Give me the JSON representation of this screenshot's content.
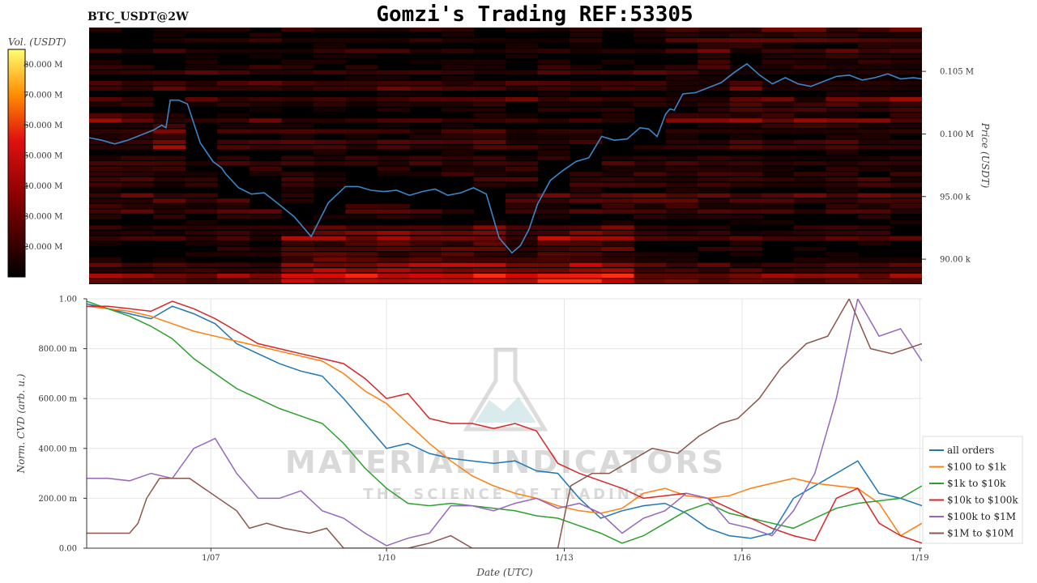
{
  "header": {
    "ticker": "BTC_USDT@2W",
    "title": "Gomzi's Trading REF:53305"
  },
  "watermark": {
    "brand": "MATERIAL INDICATORS",
    "tagline": "THE SCIENCE OF TRADING"
  },
  "colors": {
    "price_line": "#3a86c8",
    "heatmap_dark": "#000000",
    "heatmap_hot": "#ff2a1a",
    "grid": "#e6e6e6"
  },
  "chart_data": [
    {
      "type": "heatmap",
      "title": "BTC_USDT@2W",
      "colorbar_label": "Vol. (USDT)",
      "colorbar_ticks": [
        "80.000 M",
        "70.000 M",
        "60.000 M",
        "50.000 M",
        "40.000 M",
        "30.000 M",
        "20.000 M"
      ],
      "colorbar_values": [
        80000000,
        70000000,
        60000000,
        50000000,
        40000000,
        30000000,
        20000000
      ],
      "ylabel": "Price (USDT)",
      "price_ticks": [
        "0.105 M",
        "0.100 M",
        "95.00 k",
        "90.00 k"
      ],
      "price_values": [
        105000,
        100000,
        95000,
        90000
      ],
      "ylim": [
        88000,
        108500
      ],
      "colorbar_range": [
        10000000,
        85000000
      ],
      "series": [
        {
          "name": "price",
          "x": [
            0,
            0.3,
            0.6,
            0.9,
            1.2,
            1.5,
            1.7,
            1.8,
            1.9,
            2.1,
            2.3,
            2.6,
            2.9,
            3.1,
            3.2,
            3.5,
            3.8,
            4.1,
            4.4,
            4.8,
            5.2,
            5.6,
            6.0,
            6.3,
            6.6,
            6.9,
            7.2,
            7.5,
            7.8,
            8.1,
            8.4,
            8.7,
            9.0,
            9.3,
            9.6,
            9.9,
            10.1,
            10.3,
            10.5,
            10.8,
            11.1,
            11.4,
            11.7,
            12.0,
            12.3,
            12.6,
            12.9,
            13.1,
            13.3,
            13.5,
            13.6,
            13.7,
            13.9,
            14.2,
            14.5,
            14.8,
            15.1,
            15.4,
            15.7,
            16.0,
            16.3,
            16.6,
            16.9,
            17.2,
            17.5,
            17.8,
            18.1,
            18.4,
            18.7,
            19.0,
            19.3,
            19.5
          ],
          "y": [
            99700,
            99500,
            99200,
            99500,
            99900,
            100300,
            100700,
            100500,
            102700,
            102700,
            102400,
            99300,
            97800,
            97300,
            96800,
            95700,
            95200,
            95300,
            94500,
            93400,
            91800,
            94500,
            95800,
            95800,
            95500,
            95400,
            95500,
            95100,
            95400,
            95600,
            95100,
            95300,
            95700,
            95200,
            91700,
            90500,
            91100,
            92400,
            94400,
            96300,
            97100,
            97800,
            98100,
            99800,
            99500,
            99600,
            100500,
            100400,
            99800,
            101600,
            102000,
            101900,
            103200,
            103300,
            103700,
            104100,
            104900,
            105600,
            104700,
            104000,
            104500,
            104000,
            103800,
            104200,
            104600,
            104700,
            104300,
            104500,
            104800,
            104400,
            104500,
            104400
          ]
        }
      ]
    },
    {
      "type": "line",
      "xlabel": "Date (UTC)",
      "ylabel": "Norm. CVD (arb. u.)",
      "x_ticks": [
        "1/07",
        "1/10",
        "1/13",
        "1/16",
        "1/19"
      ],
      "x_tick_values": [
        2.9,
        7.0,
        11.15,
        15.3,
        19.45
      ],
      "y_ticks": [
        "1.00",
        "800.00 m",
        "600.00 m",
        "400.00 m",
        "200.00 m",
        "0.00"
      ],
      "y_tick_values": [
        1.0,
        0.8,
        0.6,
        0.4,
        0.2,
        0.0
      ],
      "xlim": [
        0,
        19.5
      ],
      "ylim": [
        0,
        1.0
      ],
      "legend_position": "bottom-right",
      "series": [
        {
          "name": "all orders",
          "color": "#1f77b4",
          "x": [
            0,
            0.5,
            1.0,
            1.5,
            2.0,
            2.5,
            3.0,
            3.5,
            4.0,
            4.5,
            5.0,
            5.5,
            6.0,
            6.5,
            7.0,
            7.5,
            8.0,
            8.5,
            9.0,
            9.5,
            10.0,
            10.5,
            11.0,
            11.5,
            12.0,
            12.5,
            13.0,
            13.5,
            14.0,
            14.5,
            15.0,
            15.5,
            16.0,
            16.5,
            17.0,
            17.5,
            18.0,
            18.5,
            19.0,
            19.5
          ],
          "y": [
            0.98,
            0.96,
            0.94,
            0.92,
            0.97,
            0.94,
            0.9,
            0.82,
            0.78,
            0.74,
            0.71,
            0.69,
            0.6,
            0.5,
            0.4,
            0.42,
            0.38,
            0.36,
            0.35,
            0.34,
            0.35,
            0.31,
            0.3,
            0.2,
            0.12,
            0.15,
            0.17,
            0.18,
            0.14,
            0.08,
            0.05,
            0.04,
            0.06,
            0.2,
            0.25,
            0.3,
            0.35,
            0.22,
            0.2,
            0.17
          ]
        },
        {
          "name": "$100 to $1k",
          "color": "#ff7f0e",
          "x": [
            0,
            0.5,
            1.0,
            1.5,
            2.0,
            2.5,
            3.0,
            3.5,
            4.0,
            4.5,
            5.0,
            5.5,
            6.0,
            6.5,
            7.0,
            7.5,
            8.0,
            8.5,
            9.0,
            9.5,
            10.0,
            10.5,
            11.0,
            11.5,
            12.0,
            12.5,
            13.0,
            13.5,
            14.0,
            14.5,
            15.0,
            15.5,
            16.0,
            16.5,
            17.0,
            17.5,
            18.0,
            18.5,
            19.0,
            19.5
          ],
          "y": [
            0.97,
            0.96,
            0.95,
            0.93,
            0.9,
            0.87,
            0.85,
            0.83,
            0.81,
            0.79,
            0.77,
            0.75,
            0.7,
            0.63,
            0.58,
            0.5,
            0.42,
            0.35,
            0.29,
            0.25,
            0.22,
            0.2,
            0.17,
            0.15,
            0.14,
            0.16,
            0.22,
            0.24,
            0.21,
            0.2,
            0.21,
            0.24,
            0.26,
            0.28,
            0.26,
            0.25,
            0.24,
            0.18,
            0.05,
            0.1
          ]
        },
        {
          "name": "$1k to $10k",
          "color": "#2ca02c",
          "x": [
            0,
            0.5,
            1.0,
            1.5,
            2.0,
            2.5,
            3.0,
            3.5,
            4.0,
            4.5,
            5.0,
            5.5,
            6.0,
            6.5,
            7.0,
            7.5,
            8.0,
            8.5,
            9.0,
            9.5,
            10.0,
            10.5,
            11.0,
            11.5,
            12.0,
            12.5,
            13.0,
            13.5,
            14.0,
            14.5,
            15.0,
            15.5,
            16.0,
            16.5,
            17.0,
            17.5,
            18.0,
            18.5,
            19.0,
            19.5
          ],
          "y": [
            0.99,
            0.96,
            0.93,
            0.89,
            0.84,
            0.76,
            0.7,
            0.64,
            0.6,
            0.56,
            0.53,
            0.5,
            0.42,
            0.32,
            0.24,
            0.18,
            0.17,
            0.18,
            0.17,
            0.16,
            0.15,
            0.13,
            0.12,
            0.09,
            0.06,
            0.02,
            0.05,
            0.1,
            0.15,
            0.18,
            0.14,
            0.12,
            0.1,
            0.08,
            0.12,
            0.16,
            0.18,
            0.19,
            0.2,
            0.25
          ]
        },
        {
          "name": "$10k to $100k",
          "color": "#d62728",
          "x": [
            0,
            0.5,
            1.0,
            1.5,
            2.0,
            2.5,
            3.0,
            3.5,
            4.0,
            4.5,
            5.0,
            5.5,
            6.0,
            6.5,
            7.0,
            7.5,
            8.0,
            8.5,
            9.0,
            9.5,
            10.0,
            10.5,
            11.0,
            11.5,
            12.0,
            12.5,
            13.0,
            13.5,
            14.0,
            14.5,
            15.0,
            15.5,
            16.0,
            16.5,
            17.0,
            17.5,
            18.0,
            18.5,
            19.0,
            19.5
          ],
          "y": [
            0.97,
            0.97,
            0.96,
            0.95,
            0.99,
            0.96,
            0.92,
            0.87,
            0.82,
            0.8,
            0.78,
            0.76,
            0.74,
            0.68,
            0.6,
            0.62,
            0.52,
            0.5,
            0.5,
            0.48,
            0.5,
            0.47,
            0.34,
            0.3,
            0.27,
            0.24,
            0.2,
            0.21,
            0.22,
            0.2,
            0.16,
            0.12,
            0.08,
            0.05,
            0.03,
            0.2,
            0.24,
            0.1,
            0.05,
            0.02
          ]
        },
        {
          "name": "$100k to $1M",
          "color": "#9467bd",
          "x": [
            0,
            0.5,
            1.0,
            1.5,
            2.0,
            2.5,
            3.0,
            3.5,
            4.0,
            4.5,
            5.0,
            5.5,
            6.0,
            6.5,
            7.0,
            7.5,
            8.0,
            8.5,
            9.0,
            9.5,
            10.0,
            10.5,
            11.0,
            11.5,
            12.0,
            12.5,
            13.0,
            13.5,
            14.0,
            14.5,
            15.0,
            15.5,
            16.0,
            16.5,
            17.0,
            17.5,
            18.0,
            18.5,
            19.0,
            19.5
          ],
          "y": [
            0.28,
            0.28,
            0.27,
            0.3,
            0.28,
            0.4,
            0.44,
            0.3,
            0.2,
            0.2,
            0.23,
            0.15,
            0.12,
            0.06,
            0.01,
            0.04,
            0.06,
            0.17,
            0.17,
            0.15,
            0.18,
            0.2,
            0.16,
            0.18,
            0.14,
            0.06,
            0.12,
            0.15,
            0.22,
            0.2,
            0.1,
            0.08,
            0.05,
            0.15,
            0.3,
            0.6,
            1.0,
            0.85,
            0.88,
            0.75
          ]
        },
        {
          "name": "$1M to $10M",
          "color": "#8c564b",
          "x": [
            0,
            1.0,
            1.2,
            1.4,
            1.7,
            2.4,
            3.5,
            3.8,
            4.2,
            4.6,
            5.2,
            5.6,
            6.0,
            6.5,
            7.0,
            7.5,
            8.0,
            8.5,
            9.0,
            9.5,
            10.0,
            10.5,
            11.0,
            11.3,
            11.8,
            12.2,
            12.7,
            13.2,
            13.8,
            14.3,
            14.8,
            15.2,
            15.7,
            16.2,
            16.8,
            17.3,
            17.8,
            18.3,
            18.8,
            19.5
          ],
          "y": [
            0.06,
            0.06,
            0.1,
            0.2,
            0.28,
            0.28,
            0.15,
            0.08,
            0.1,
            0.08,
            0.06,
            0.08,
            0.0,
            0.0,
            0.0,
            0.0,
            0.02,
            0.05,
            0.0,
            0.0,
            0.0,
            0.0,
            0.0,
            0.25,
            0.3,
            0.3,
            0.35,
            0.4,
            0.38,
            0.45,
            0.5,
            0.52,
            0.6,
            0.72,
            0.82,
            0.85,
            1.0,
            0.8,
            0.78,
            0.82
          ]
        }
      ]
    }
  ]
}
